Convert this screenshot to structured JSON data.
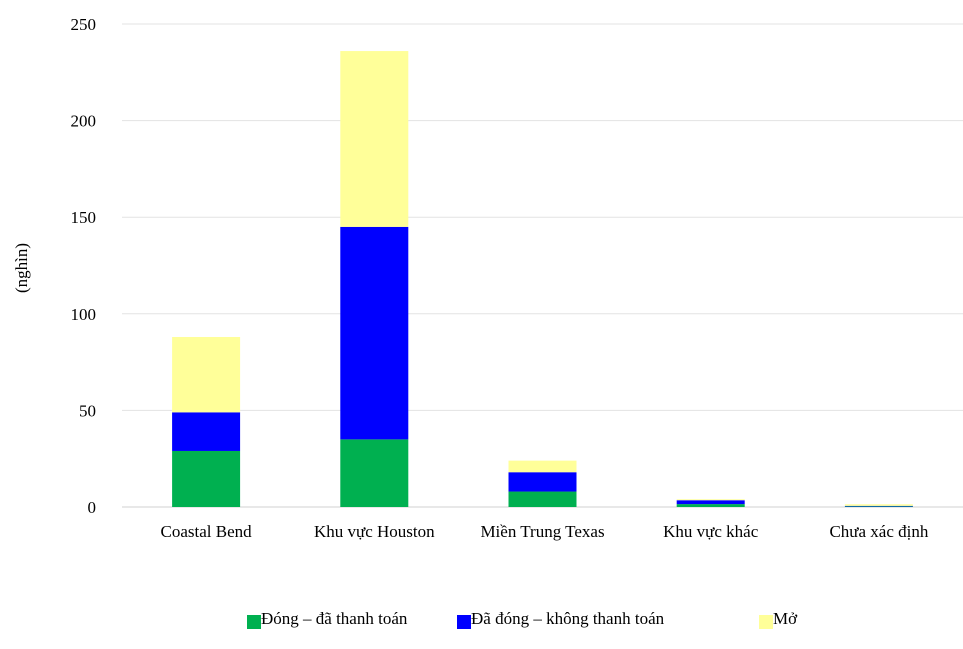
{
  "chart_data": {
    "type": "bar",
    "stacked": true,
    "title": "",
    "xlabel": "",
    "ylabel": "(nghìn)",
    "ylim": [
      0,
      250
    ],
    "yticks": [
      0,
      50,
      100,
      150,
      200,
      250
    ],
    "grid": true,
    "legend_position": "bottom",
    "categories": [
      "Coastal Bend",
      "Khu vực Houston",
      "Miền Trung Texas",
      "Khu vực khác",
      "Chưa xác định"
    ],
    "series": [
      {
        "name": "Đóng – đã thanh toán",
        "color": "#00b050",
        "values": [
          29,
          35,
          8,
          1.5,
          0.3
        ]
      },
      {
        "name": "Đã đóng – không thanh toán",
        "color": "#0000ff",
        "values": [
          20,
          110,
          10,
          2,
          0.3
        ]
      },
      {
        "name": "Mở",
        "color": "#ffff99",
        "values": [
          39,
          91,
          6,
          0.5,
          0.8
        ]
      }
    ]
  }
}
